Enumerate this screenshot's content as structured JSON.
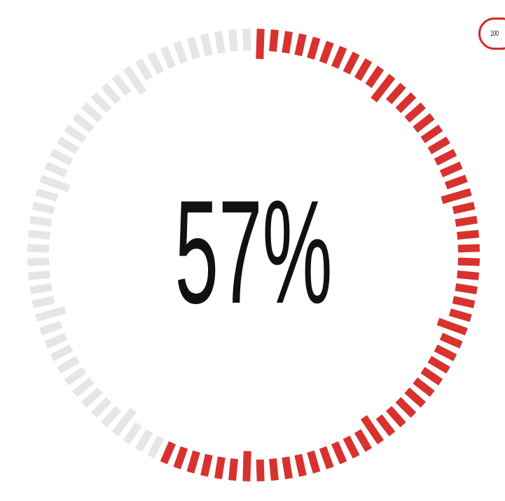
{
  "gauge": {
    "value_label": "57%",
    "fill_fraction": 0.57,
    "tick_count": 100,
    "colors": {
      "filled": "#d8322f",
      "empty": "#e6e6e6",
      "text": "#111111"
    }
  },
  "badge": {
    "label": "100"
  }
}
